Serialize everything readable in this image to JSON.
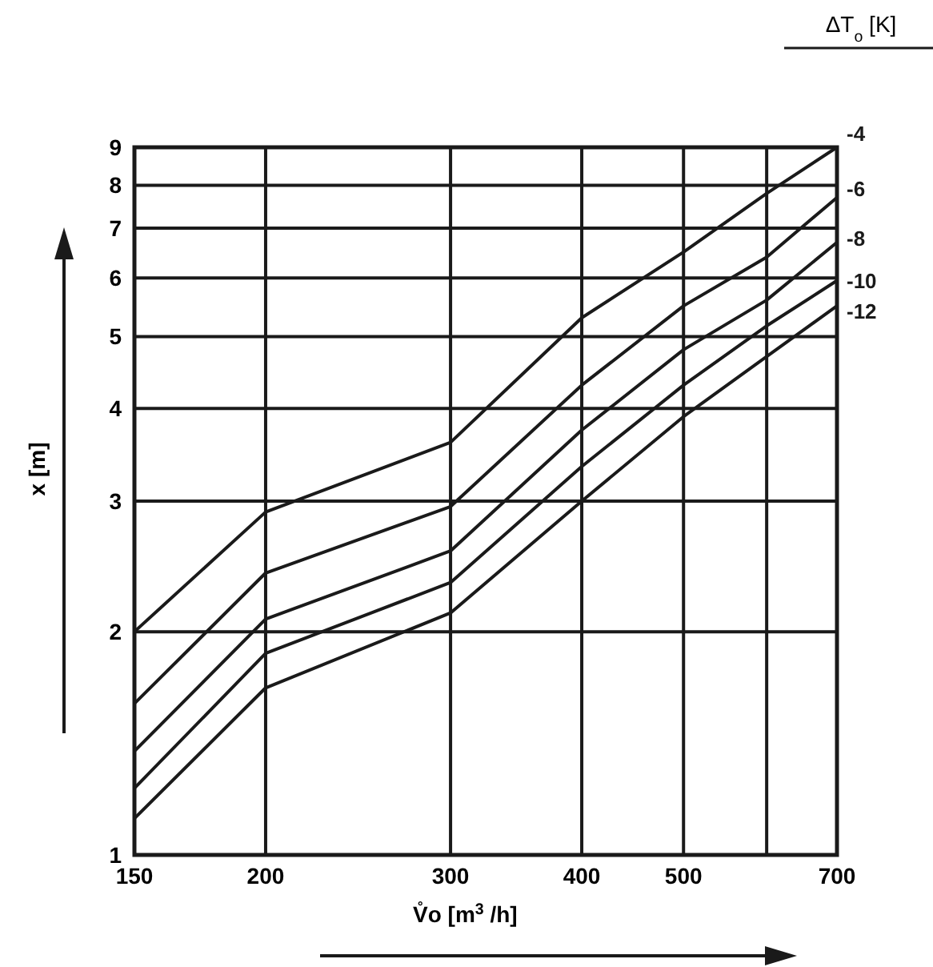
{
  "chart_data": {
    "type": "line",
    "xlabel": "V̊o [m$^{3}$ /h]",
    "ylabel": "x [m]",
    "legend_title": "ΔT$_{o}$ [K]",
    "x": [
      150,
      200,
      300,
      400,
      500,
      600,
      700
    ],
    "log": "xy",
    "xlim": [
      150,
      700
    ],
    "ylim": [
      1,
      9
    ],
    "xticks": [
      150,
      200,
      300,
      400,
      500,
      {
        "value": 600,
        "label": null
      },
      700
    ],
    "yticks": [
      1,
      2,
      3,
      4,
      5,
      6,
      7,
      8,
      9
    ],
    "grid": true,
    "legend": false,
    "marker": "none",
    "line_style": "solid",
    "series": [
      {
        "name": "-4",
        "color": "#1a1a1a",
        "values": [
          2,
          2.9,
          3.6,
          5.3,
          6.5,
          7.8,
          9
        ]
      },
      {
        "name": "-6",
        "color": "#1a1a1a",
        "values": [
          1.6,
          2.4,
          2.95,
          4.3,
          5.5,
          6.4,
          7.7
        ]
      },
      {
        "name": "-8",
        "color": "#1a1a1a",
        "values": [
          1.38,
          2.08,
          2.57,
          3.74,
          4.8,
          5.6,
          6.7
        ]
      },
      {
        "name": "-10",
        "color": "#1a1a1a",
        "values": [
          1.23,
          1.87,
          2.33,
          3.34,
          4.3,
          5.17,
          5.95
        ]
      },
      {
        "name": "-12",
        "color": "#1a1a1a",
        "values": [
          1.12,
          1.68,
          2.12,
          3.0,
          3.9,
          4.7,
          5.5
        ]
      }
    ]
  }
}
